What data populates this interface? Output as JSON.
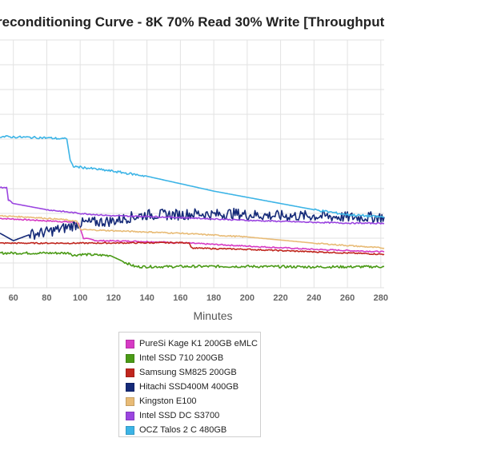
{
  "chart_data": {
    "type": "line",
    "title": "reconditioning Curve - 8K 70% Read 30% Write [Throughput",
    "xlabel": "Minutes",
    "ylabel": "",
    "x_ticks": [
      60,
      80,
      100,
      120,
      140,
      160,
      180,
      200,
      220,
      240,
      260,
      280
    ],
    "xlim": [
      52,
      282
    ],
    "ylim": [
      0,
      100
    ],
    "grid": true,
    "legend_position": "bottom",
    "series": [
      {
        "name": "PureSi Kage K1 200GB eMLC",
        "color": "#d63ac4",
        "x": [
          52,
          80,
          95,
          99,
          102,
          110,
          130,
          160,
          200,
          240,
          282
        ],
        "y": [
          28,
          27,
          26.5,
          26,
          20,
          19,
          18.8,
          18.2,
          16.8,
          15.5,
          14.5
        ]
      },
      {
        "name": "Intel SSD 710 200GB",
        "color": "#4a9a16",
        "x": [
          52,
          80,
          94,
          96,
          100,
          118,
          126,
          133,
          150,
          170,
          200,
          240,
          282
        ],
        "y": [
          14,
          14,
          14,
          13,
          13.5,
          13,
          10.5,
          8.5,
          8.5,
          8.6,
          8.6,
          8.4,
          8.5
        ]
      },
      {
        "name": "Samsung SM825 200GB",
        "color": "#c0261e",
        "x": [
          52,
          100,
          165,
          167,
          200,
          240,
          282
        ],
        "y": [
          18,
          18,
          18.2,
          16,
          15.5,
          14.5,
          13.5
        ]
      },
      {
        "name": "Hitachi SSD400M 400GB",
        "color": "#152a78",
        "x": [
          52,
          60,
          70,
          80,
          90,
          100,
          110,
          120,
          130,
          140,
          150,
          160,
          170,
          180,
          190,
          200,
          220,
          240,
          260,
          282
        ],
        "y": [
          22,
          19,
          21.5,
          22.5,
          24,
          26,
          26.5,
          27,
          28.5,
          29.5,
          29.5,
          29.5,
          30,
          29.5,
          30,
          29.5,
          29,
          29,
          28.5,
          28.5
        ]
      },
      {
        "name": "Kingston E100",
        "color": "#e8bb76",
        "x": [
          52,
          70,
          90,
          98,
          100,
          120,
          160,
          200,
          240,
          282
        ],
        "y": [
          29,
          28.5,
          27.5,
          26.8,
          23.5,
          23,
          22,
          20.5,
          18,
          16
        ]
      },
      {
        "name": "Intel SSD DC S3700",
        "color": "#9b45e0",
        "x": [
          52,
          56,
          57,
          60,
          80,
          100,
          120,
          140,
          160,
          180,
          200,
          220,
          240,
          260,
          282
        ],
        "y": [
          40.5,
          40.5,
          35.5,
          34,
          31.5,
          30,
          29,
          28.8,
          28.3,
          27.8,
          27.2,
          26.8,
          26.4,
          26.1,
          26
        ]
      },
      {
        "name": "OCZ Talos 2 C 480GB",
        "color": "#3cb4e6",
        "x": [
          52,
          80,
          92,
          94,
          96,
          120,
          140,
          160,
          180,
          200,
          220,
          240,
          260,
          282
        ],
        "y": [
          61,
          60.5,
          60,
          51.5,
          49,
          47,
          45,
          42,
          39,
          36.5,
          34,
          31.5,
          29.5,
          28.5
        ]
      }
    ]
  }
}
